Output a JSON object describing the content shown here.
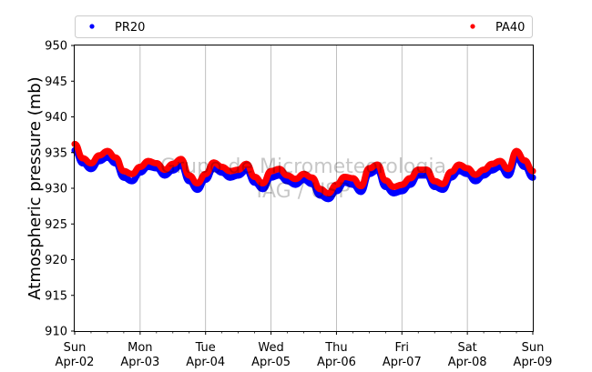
{
  "chart_data": {
    "type": "line",
    "ylabel": "Atmospheric pressure (mb)",
    "ylim": [
      910,
      950
    ],
    "yticks": [
      910,
      915,
      920,
      925,
      930,
      935,
      940,
      945,
      950
    ],
    "xlim": [
      "2023-04-02",
      "2023-04-09"
    ],
    "xticks": [
      {
        "date": "2023-04-02",
        "day": "Sun",
        "label": "Apr-02"
      },
      {
        "date": "2023-04-03",
        "day": "Mon",
        "label": "Apr-03"
      },
      {
        "date": "2023-04-04",
        "day": "Tue",
        "label": "Apr-04"
      },
      {
        "date": "2023-04-05",
        "day": "Wed",
        "label": "Apr-05"
      },
      {
        "date": "2023-04-06",
        "day": "Thu",
        "label": "Apr-06"
      },
      {
        "date": "2023-04-07",
        "day": "Fri",
        "label": "Apr-07"
      },
      {
        "date": "2023-04-08",
        "day": "Sat",
        "label": "Apr-08"
      },
      {
        "date": "2023-04-09",
        "day": "Sun",
        "label": "Apr-09"
      }
    ],
    "grid": "vertical",
    "legend_position": "top",
    "watermark": [
      "Grupo de Micrometeorologia",
      "IAG / USP"
    ],
    "series": [
      {
        "name": "PR20",
        "color": "#0000ff",
        "x": [
          "2023-04-02T00:00",
          "2023-04-02T03:00",
          "2023-04-02T06:00",
          "2023-04-02T09:00",
          "2023-04-02T12:00",
          "2023-04-02T15:00",
          "2023-04-02T18:00",
          "2023-04-02T21:00",
          "2023-04-03T00:00",
          "2023-04-03T03:00",
          "2023-04-03T06:00",
          "2023-04-03T09:00",
          "2023-04-03T12:00",
          "2023-04-03T15:00",
          "2023-04-03T18:00",
          "2023-04-03T21:00",
          "2023-04-04T00:00",
          "2023-04-04T03:00",
          "2023-04-04T06:00",
          "2023-04-04T09:00",
          "2023-04-04T12:00",
          "2023-04-04T15:00",
          "2023-04-04T18:00",
          "2023-04-04T21:00",
          "2023-04-05T00:00",
          "2023-04-05T03:00",
          "2023-04-05T06:00",
          "2023-04-05T09:00",
          "2023-04-05T12:00",
          "2023-04-05T15:00",
          "2023-04-05T18:00",
          "2023-04-05T21:00",
          "2023-04-06T00:00",
          "2023-04-06T03:00",
          "2023-04-06T06:00",
          "2023-04-06T09:00",
          "2023-04-06T12:00",
          "2023-04-06T15:00",
          "2023-04-06T18:00",
          "2023-04-06T21:00",
          "2023-04-07T00:00",
          "2023-04-07T03:00",
          "2023-04-07T06:00",
          "2023-04-07T09:00",
          "2023-04-07T12:00",
          "2023-04-07T15:00",
          "2023-04-07T18:00",
          "2023-04-07T21:00",
          "2023-04-08T00:00",
          "2023-04-08T03:00",
          "2023-04-08T06:00",
          "2023-04-08T09:00",
          "2023-04-08T12:00",
          "2023-04-08T15:00",
          "2023-04-08T18:00",
          "2023-04-08T21:00",
          "2023-04-09T00:00"
        ],
        "y": [
          935.3,
          933.5,
          932.7,
          933.8,
          934.3,
          933.5,
          931.5,
          931.0,
          932.2,
          933.0,
          932.8,
          931.8,
          932.5,
          933.2,
          931.0,
          929.8,
          931.2,
          932.8,
          932.2,
          931.5,
          931.8,
          932.5,
          930.8,
          929.9,
          931.5,
          931.8,
          931.0,
          930.5,
          931.2,
          930.6,
          929.0,
          928.5,
          929.6,
          930.8,
          930.5,
          929.5,
          932.0,
          932.5,
          930.2,
          929.3,
          929.6,
          930.5,
          931.8,
          931.8,
          930.2,
          929.8,
          931.5,
          932.4,
          932.0,
          931.0,
          931.8,
          932.5,
          933.0,
          931.8,
          934.2,
          933.0,
          931.5
        ]
      },
      {
        "name": "PA40",
        "color": "#ff0000",
        "x": [
          "2023-04-02T00:00",
          "2023-04-02T03:00",
          "2023-04-02T06:00",
          "2023-04-02T09:00",
          "2023-04-02T12:00",
          "2023-04-02T15:00",
          "2023-04-02T18:00",
          "2023-04-02T21:00",
          "2023-04-03T00:00",
          "2023-04-03T03:00",
          "2023-04-03T06:00",
          "2023-04-03T09:00",
          "2023-04-03T12:00",
          "2023-04-03T15:00",
          "2023-04-03T18:00",
          "2023-04-03T21:00",
          "2023-04-04T00:00",
          "2023-04-04T03:00",
          "2023-04-04T06:00",
          "2023-04-04T09:00",
          "2023-04-04T12:00",
          "2023-04-04T15:00",
          "2023-04-04T18:00",
          "2023-04-04T21:00",
          "2023-04-05T00:00",
          "2023-04-05T03:00",
          "2023-04-05T06:00",
          "2023-04-05T09:00",
          "2023-04-05T12:00",
          "2023-04-05T15:00",
          "2023-04-05T18:00",
          "2023-04-05T21:00",
          "2023-04-06T00:00",
          "2023-04-06T03:00",
          "2023-04-06T06:00",
          "2023-04-06T09:00",
          "2023-04-06T12:00",
          "2023-04-06T15:00",
          "2023-04-06T18:00",
          "2023-04-06T21:00",
          "2023-04-07T00:00",
          "2023-04-07T03:00",
          "2023-04-07T06:00",
          "2023-04-07T09:00",
          "2023-04-07T12:00",
          "2023-04-07T15:00",
          "2023-04-07T18:00",
          "2023-04-07T21:00",
          "2023-04-08T00:00",
          "2023-04-08T03:00",
          "2023-04-08T06:00",
          "2023-04-08T09:00",
          "2023-04-08T12:00",
          "2023-04-08T15:00",
          "2023-04-08T18:00",
          "2023-04-08T21:00",
          "2023-04-09T00:00"
        ],
        "y": [
          936.2,
          934.2,
          933.5,
          934.6,
          935.2,
          934.3,
          932.4,
          932.0,
          933.0,
          933.8,
          933.5,
          932.6,
          933.4,
          934.1,
          931.8,
          930.7,
          932.0,
          933.6,
          933.0,
          932.4,
          932.6,
          933.4,
          931.6,
          930.7,
          932.4,
          932.7,
          931.8,
          931.3,
          932.0,
          931.5,
          929.9,
          929.3,
          930.5,
          931.6,
          931.4,
          930.3,
          932.8,
          933.3,
          931.1,
          930.2,
          930.5,
          931.4,
          932.6,
          932.6,
          931.0,
          930.6,
          932.3,
          933.3,
          932.8,
          931.9,
          932.6,
          933.4,
          933.8,
          932.7,
          935.2,
          933.9,
          932.4
        ]
      }
    ]
  }
}
